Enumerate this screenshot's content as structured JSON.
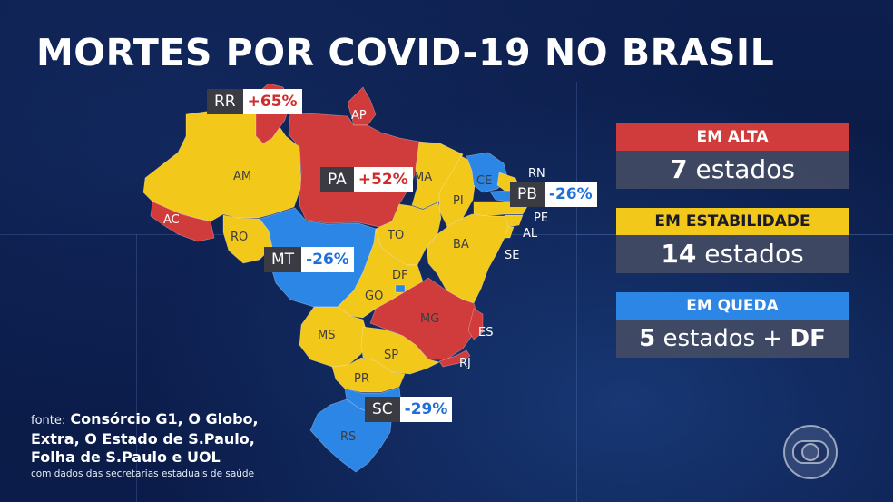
{
  "title": "MORTES POR COVID-19 NO BRASIL",
  "colors": {
    "alta": "#d03b3b",
    "estabilidade": "#f2c81a",
    "queda": "#2b86e6",
    "background": "#0c1d4a"
  },
  "states": [
    {
      "code": "AM",
      "status": "estabilidade"
    },
    {
      "code": "RR",
      "status": "alta"
    },
    {
      "code": "AP",
      "status": "alta"
    },
    {
      "code": "PA",
      "status": "alta"
    },
    {
      "code": "AC",
      "status": "alta"
    },
    {
      "code": "RO",
      "status": "estabilidade"
    },
    {
      "code": "MT",
      "status": "queda"
    },
    {
      "code": "MA",
      "status": "estabilidade"
    },
    {
      "code": "PI",
      "status": "estabilidade"
    },
    {
      "code": "CE",
      "status": "queda"
    },
    {
      "code": "RN",
      "status": "estabilidade"
    },
    {
      "code": "PB",
      "status": "queda"
    },
    {
      "code": "PE",
      "status": "estabilidade"
    },
    {
      "code": "AL",
      "status": "estabilidade"
    },
    {
      "code": "SE",
      "status": "estabilidade"
    },
    {
      "code": "BA",
      "status": "estabilidade"
    },
    {
      "code": "TO",
      "status": "estabilidade"
    },
    {
      "code": "GO",
      "status": "estabilidade"
    },
    {
      "code": "DF",
      "status": "queda"
    },
    {
      "code": "MS",
      "status": "estabilidade"
    },
    {
      "code": "MG",
      "status": "alta"
    },
    {
      "code": "ES",
      "status": "alta"
    },
    {
      "code": "RJ",
      "status": "alta"
    },
    {
      "code": "SP",
      "status": "estabilidade"
    },
    {
      "code": "PR",
      "status": "estabilidade"
    },
    {
      "code": "SC",
      "status": "queda"
    },
    {
      "code": "RS",
      "status": "queda"
    }
  ],
  "labels": {
    "AM": "AM",
    "AP": "AP",
    "AC": "AC",
    "RO": "RO",
    "MA": "MA",
    "PI": "PI",
    "CE": "CE",
    "RN": "RN",
    "PE": "PE",
    "AL": "AL",
    "SE": "SE",
    "BA": "BA",
    "TO": "TO",
    "DF": "DF",
    "GO": "GO",
    "MG": "MG",
    "ES": "ES",
    "RJ": "RJ",
    "MS": "MS",
    "SP": "SP",
    "PR": "PR",
    "RS": "RS"
  },
  "badges": {
    "RR": {
      "code": "RR",
      "value": "+65%"
    },
    "PA": {
      "code": "PA",
      "value": "+52%"
    },
    "PB": {
      "code": "PB",
      "value": "-26%"
    },
    "MT": {
      "code": "MT",
      "value": "-26%"
    },
    "SC": {
      "code": "SC",
      "value": "-29%"
    }
  },
  "categories": {
    "alta": {
      "head": "EM ALTA",
      "count": "7",
      "rest": " estados",
      "extra": ""
    },
    "estabilidade": {
      "head": "EM ESTABILIDADE",
      "count": "14",
      "rest": " estados",
      "extra": ""
    },
    "queda": {
      "head": "EM QUEDA",
      "count": "5",
      "rest": " estados + ",
      "extra": "DF"
    }
  },
  "source": {
    "label": "fonte:",
    "line1": "Consórcio G1, O Globo,",
    "line2": "Extra, O Estado de S.Paulo,",
    "line3": "Folha de S.Paulo e UOL",
    "note": "com dados das secretarias estaduais de saúde"
  },
  "logo_icon": "globo-logo-icon"
}
